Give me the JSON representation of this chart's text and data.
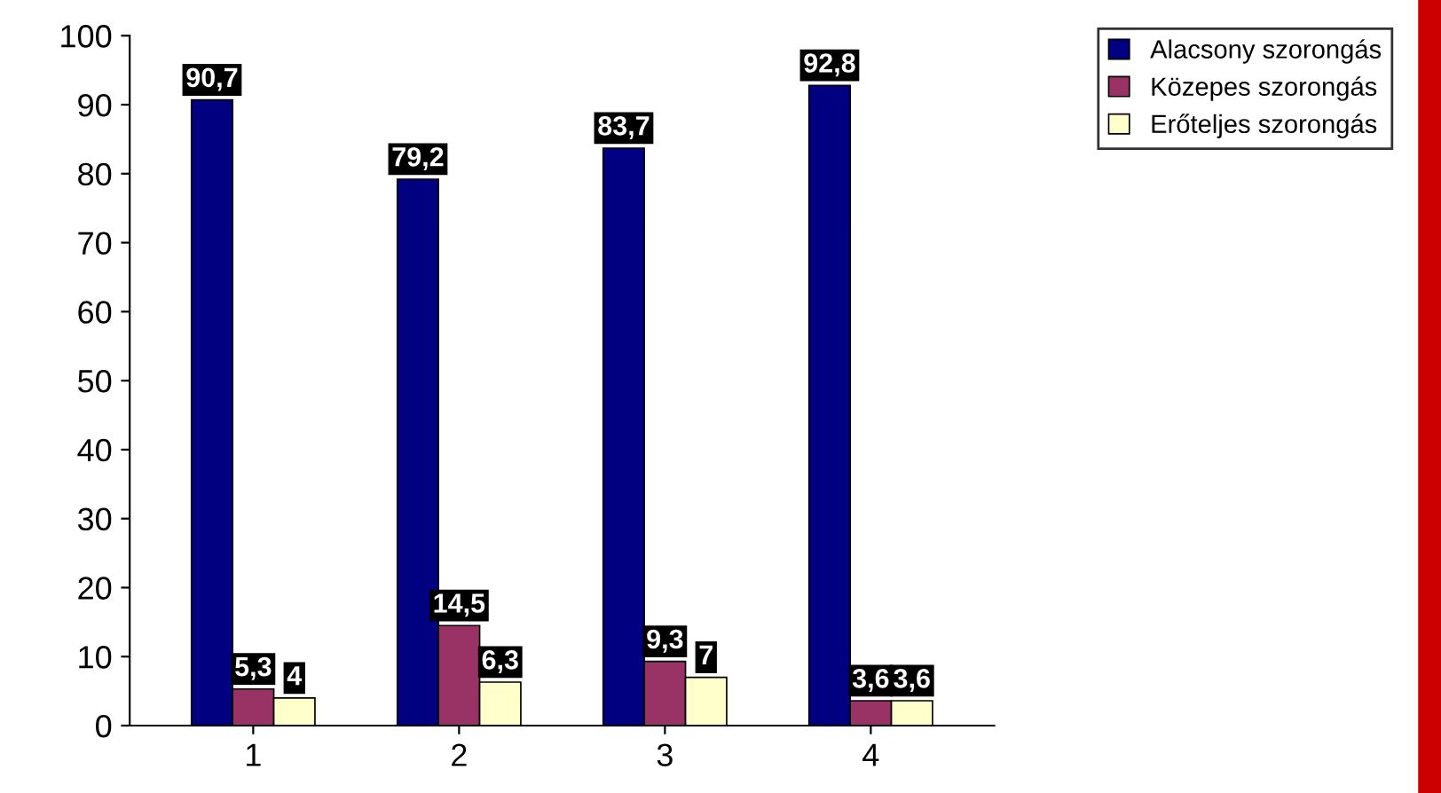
{
  "chart_data": {
    "type": "bar",
    "categories": [
      "1",
      "2",
      "3",
      "4"
    ],
    "series": [
      {
        "name": "Alacsony szorongás",
        "color": "#000080",
        "values": [
          90.7,
          79.2,
          83.7,
          92.8
        ],
        "value_labels": [
          "90,7",
          "79,2",
          "83,7",
          "92,8"
        ]
      },
      {
        "name": "Közepes szorongás",
        "color": "#993366",
        "values": [
          5.3,
          14.5,
          9.3,
          3.6
        ],
        "value_labels": [
          "5,3",
          "14,5",
          "9,3",
          "3,6"
        ]
      },
      {
        "name": "Erőteljes szorongás",
        "color": "#ffffcc",
        "values": [
          4,
          6.3,
          7,
          3.6
        ],
        "value_labels": [
          "4",
          "6,3",
          "7",
          "3,6"
        ]
      }
    ],
    "ylim": [
      0,
      100
    ],
    "yticks": [
      0,
      10,
      20,
      30,
      40,
      50,
      60,
      70,
      80,
      90,
      100
    ],
    "grid": false,
    "legend": "top right"
  }
}
